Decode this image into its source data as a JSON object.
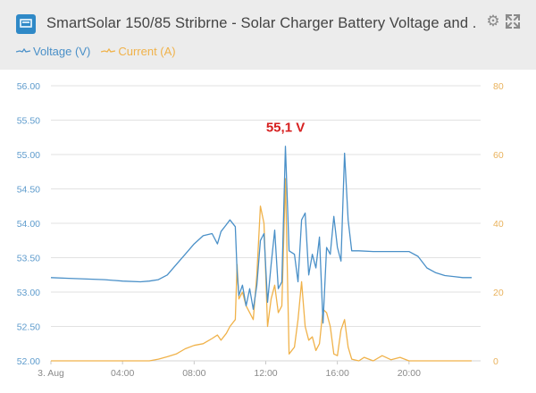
{
  "header": {
    "title": "SmartSolar 150/85 Stribrne - Solar Charger Battery Voltage and ...",
    "icon": "solar-charger-icon",
    "settings_icon": "gear-icon",
    "expand_icon": "expand-icon"
  },
  "colors": {
    "voltage": "#4a90c8",
    "current": "#f0b24a",
    "peak_label": "#d62020",
    "header_bg": "#ececec",
    "grid": "#e2e2e2"
  },
  "chart_data": {
    "type": "line",
    "x_tick_labels": [
      "3. Aug",
      "04:00",
      "08:00",
      "12:00",
      "16:00",
      "20:00"
    ],
    "x_tick_hours": [
      0,
      4,
      8,
      12,
      16,
      20
    ],
    "x_range_hours": [
      0,
      24
    ],
    "y_left": {
      "ticks": [
        "52.00",
        "52.50",
        "53.00",
        "53.50",
        "54.00",
        "54.50",
        "55.00",
        "55.50",
        "56.00"
      ],
      "range": [
        52,
        56
      ]
    },
    "y_right": {
      "ticks": [
        "0",
        "20",
        "40",
        "60",
        "80"
      ],
      "range": [
        0,
        80
      ]
    },
    "annotation": {
      "text": "55,1 V",
      "x": 13.1,
      "y": 55.1
    },
    "series": [
      {
        "name": "Voltage (V)",
        "axis": "left",
        "points": [
          [
            0,
            53.21
          ],
          [
            1,
            53.2
          ],
          [
            2,
            53.19
          ],
          [
            3,
            53.18
          ],
          [
            4,
            53.16
          ],
          [
            5,
            53.15
          ],
          [
            5.5,
            53.16
          ],
          [
            6,
            53.18
          ],
          [
            6.5,
            53.25
          ],
          [
            7,
            53.4
          ],
          [
            7.5,
            53.55
          ],
          [
            8,
            53.7
          ],
          [
            8.5,
            53.82
          ],
          [
            9,
            53.85
          ],
          [
            9.3,
            53.7
          ],
          [
            9.5,
            53.88
          ],
          [
            9.8,
            53.98
          ],
          [
            10,
            54.05
          ],
          [
            10.3,
            53.95
          ],
          [
            10.4,
            53.3
          ],
          [
            10.5,
            52.95
          ],
          [
            10.7,
            53.1
          ],
          [
            10.9,
            52.8
          ],
          [
            11.1,
            53.05
          ],
          [
            11.3,
            52.75
          ],
          [
            11.5,
            53.1
          ],
          [
            11.7,
            53.75
          ],
          [
            11.9,
            53.85
          ],
          [
            12.1,
            52.85
          ],
          [
            12.3,
            53.4
          ],
          [
            12.5,
            53.9
          ],
          [
            12.7,
            53.05
          ],
          [
            12.9,
            53.15
          ],
          [
            13.1,
            55.12
          ],
          [
            13.3,
            53.6
          ],
          [
            13.6,
            53.55
          ],
          [
            13.8,
            53.15
          ],
          [
            14.0,
            54.05
          ],
          [
            14.2,
            54.15
          ],
          [
            14.4,
            53.25
          ],
          [
            14.6,
            53.55
          ],
          [
            14.8,
            53.35
          ],
          [
            15.0,
            53.8
          ],
          [
            15.2,
            52.55
          ],
          [
            15.4,
            53.65
          ],
          [
            15.6,
            53.55
          ],
          [
            15.8,
            54.1
          ],
          [
            16.0,
            53.65
          ],
          [
            16.2,
            53.45
          ],
          [
            16.4,
            55.02
          ],
          [
            16.6,
            54.05
          ],
          [
            16.8,
            53.6
          ],
          [
            17.2,
            53.6
          ],
          [
            18,
            53.59
          ],
          [
            19,
            53.59
          ],
          [
            20,
            53.59
          ],
          [
            20.5,
            53.52
          ],
          [
            21,
            53.35
          ],
          [
            21.5,
            53.28
          ],
          [
            22,
            53.24
          ],
          [
            23,
            53.21
          ],
          [
            23.5,
            53.21
          ]
        ]
      },
      {
        "name": "Current (A)",
        "axis": "right",
        "points": [
          [
            0,
            0
          ],
          [
            5.5,
            0
          ],
          [
            6,
            0.5
          ],
          [
            6.5,
            1.2
          ],
          [
            7,
            2.0
          ],
          [
            7.5,
            3.5
          ],
          [
            8,
            4.5
          ],
          [
            8.5,
            5.0
          ],
          [
            9,
            6.5
          ],
          [
            9.3,
            7.5
          ],
          [
            9.5,
            6.0
          ],
          [
            9.8,
            8.0
          ],
          [
            10,
            10.0
          ],
          [
            10.3,
            12.0
          ],
          [
            10.4,
            28.0
          ],
          [
            10.5,
            18.0
          ],
          [
            10.7,
            20.0
          ],
          [
            10.9,
            16.0
          ],
          [
            11.1,
            14.0
          ],
          [
            11.3,
            12.0
          ],
          [
            11.5,
            25.0
          ],
          [
            11.7,
            45.0
          ],
          [
            11.9,
            40.0
          ],
          [
            12.1,
            10.0
          ],
          [
            12.3,
            18.0
          ],
          [
            12.5,
            22.0
          ],
          [
            12.7,
            14.0
          ],
          [
            12.9,
            16.0
          ],
          [
            13.1,
            53.0
          ],
          [
            13.3,
            2.0
          ],
          [
            13.6,
            4.0
          ],
          [
            13.8,
            12.0
          ],
          [
            14.0,
            23.0
          ],
          [
            14.2,
            10.0
          ],
          [
            14.4,
            6.0
          ],
          [
            14.6,
            7.0
          ],
          [
            14.8,
            3.0
          ],
          [
            15.0,
            5.0
          ],
          [
            15.2,
            15.0
          ],
          [
            15.4,
            14.0
          ],
          [
            15.6,
            10.0
          ],
          [
            15.8,
            2.0
          ],
          [
            16.0,
            1.5
          ],
          [
            16.2,
            9.0
          ],
          [
            16.4,
            12.0
          ],
          [
            16.6,
            4.0
          ],
          [
            16.8,
            0.5
          ],
          [
            17.2,
            0
          ],
          [
            17.5,
            1.0
          ],
          [
            18,
            0
          ],
          [
            18.5,
            1.5
          ],
          [
            19,
            0.3
          ],
          [
            19.5,
            1.0
          ],
          [
            20,
            0
          ],
          [
            23.5,
            0
          ]
        ]
      }
    ]
  }
}
